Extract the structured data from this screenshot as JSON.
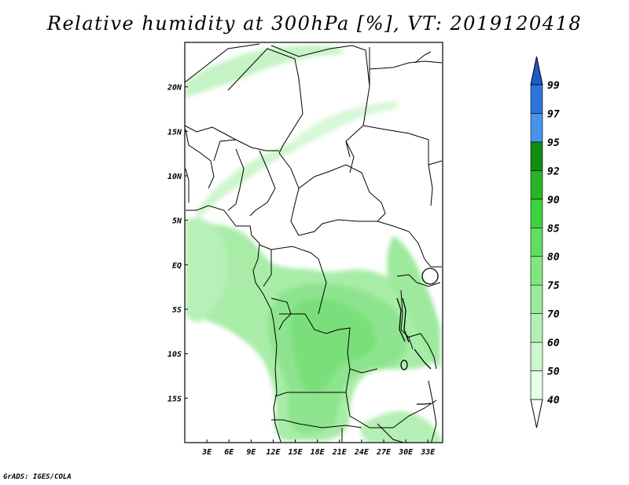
{
  "title": "Relative humidity at 300hPa [%], VT: 2019120418",
  "credit": "GrADS: IGES/COLA",
  "map": {
    "lon_range": [
      0,
      35
    ],
    "lat_range": [
      -20,
      25
    ],
    "lon_ticks": [
      {
        "value": 3,
        "label": "3E"
      },
      {
        "value": 6,
        "label": "6E"
      },
      {
        "value": 9,
        "label": "9E"
      },
      {
        "value": 12,
        "label": "12E"
      },
      {
        "value": 15,
        "label": "15E"
      },
      {
        "value": 18,
        "label": "18E"
      },
      {
        "value": 21,
        "label": "21E"
      },
      {
        "value": 24,
        "label": "24E"
      },
      {
        "value": 27,
        "label": "27E"
      },
      {
        "value": 30,
        "label": "30E"
      },
      {
        "value": 33,
        "label": "33E"
      }
    ],
    "lat_ticks": [
      {
        "value": 20,
        "label": "20N"
      },
      {
        "value": 15,
        "label": "15N"
      },
      {
        "value": 10,
        "label": "10N"
      },
      {
        "value": 5,
        "label": "5N"
      },
      {
        "value": 0,
        "label": "EQ"
      },
      {
        "value": -5,
        "label": "5S"
      },
      {
        "value": -10,
        "label": "10S"
      },
      {
        "value": -15,
        "label": "15S"
      }
    ]
  },
  "colorbar": {
    "levels": [
      "40",
      "50",
      "60",
      "70",
      "75",
      "80",
      "85",
      "90",
      "92",
      "95",
      "97",
      "99"
    ],
    "colors": [
      "#ffffff",
      "#e6ffe6",
      "#ccf7cc",
      "#b3f0b3",
      "#99eb99",
      "#80e680",
      "#5fde5f",
      "#3cd23c",
      "#27b427",
      "#128c12",
      "#4694ee",
      "#2c74dc",
      "#1e5ac8"
    ]
  },
  "humidity_colors": {
    "light": "#c8f5c8",
    "medium": "#a5ec a5",
    "strong": "#8ce68c",
    "deep": "#6ede6e"
  }
}
